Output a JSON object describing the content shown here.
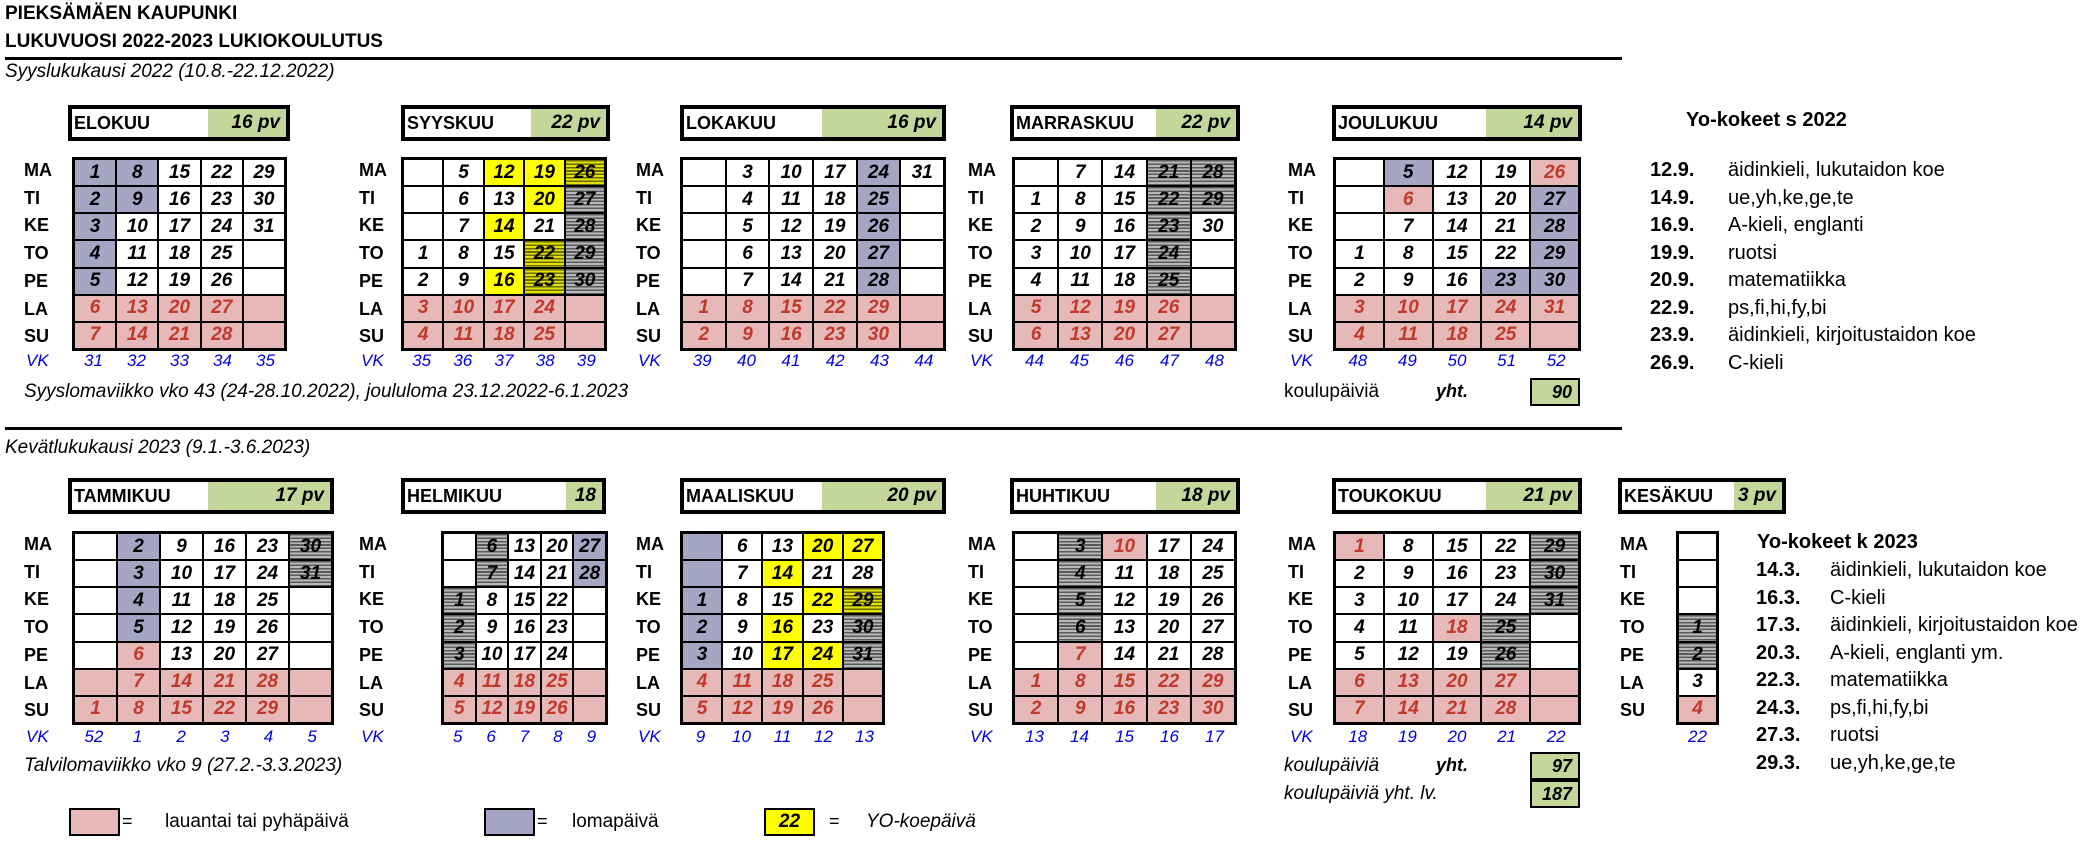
{
  "header": {
    "city": "PIEKSÄMÄEN KAUPUNKI",
    "year": "LUKUVUOSI 2022-2023 LUKIOKOULUTUS",
    "term1": "Syyslukukausi 2022 (10.8.-22.12.2022)",
    "term2": "Kevätlukukausi 2023  (9.1.-3.6.2023)"
  },
  "day_labels": [
    "MA",
    "TI",
    "KE",
    "TO",
    "PE",
    "LA",
    "SU"
  ],
  "vk_label": "VK",
  "months": [
    {
      "name": "ELOKUU",
      "pv": "16  pv",
      "cols": 5,
      "rows": [
        [
          "1",
          "8",
          "15",
          "22",
          "29"
        ],
        [
          "2",
          "9",
          "16",
          "23",
          "30"
        ],
        [
          "3",
          "10",
          "17",
          "24",
          "31"
        ],
        [
          "4",
          "11",
          "18",
          "25",
          ""
        ],
        [
          "5",
          "12",
          "19",
          "26",
          ""
        ],
        [
          "6",
          "13",
          "20",
          "27",
          ""
        ],
        [
          "7",
          "14",
          "21",
          "28",
          ""
        ]
      ],
      "styles": [
        [
          "l",
          "l",
          "v",
          "v",
          "v"
        ],
        [
          "l",
          "l",
          "v",
          "v",
          "v"
        ],
        [
          "l",
          "v",
          "v",
          "v",
          "v"
        ],
        [
          "l",
          "v",
          "v",
          "v",
          "x"
        ],
        [
          "l",
          "v",
          "v",
          "v",
          "x"
        ],
        [
          "h",
          "h",
          "h",
          "h",
          "h"
        ],
        [
          "h",
          "h",
          "h",
          "h",
          "h"
        ]
      ],
      "vk": [
        "31",
        "32",
        "33",
        "34",
        "35"
      ]
    },
    {
      "name": "SYYSKUU",
      "pv": "22  pv",
      "cols": 5,
      "rows": [
        [
          "",
          "5",
          "12",
          "19",
          "26"
        ],
        [
          "",
          "6",
          "13",
          "20",
          "27"
        ],
        [
          "",
          "7",
          "14",
          "21",
          "28"
        ],
        [
          "1",
          "8",
          "15",
          "22",
          "29"
        ],
        [
          "2",
          "9",
          "16",
          "23",
          "30"
        ],
        [
          "3",
          "10",
          "17",
          "24",
          ""
        ],
        [
          "4",
          "11",
          "18",
          "25",
          ""
        ]
      ],
      "styles": [
        [
          "x",
          "v",
          "y",
          "y",
          "ys"
        ],
        [
          "x",
          "v",
          "v",
          "y",
          "s"
        ],
        [
          "x",
          "v",
          "y",
          "v",
          "s"
        ],
        [
          "v",
          "v",
          "v",
          "ys",
          "s"
        ],
        [
          "v",
          "v",
          "y",
          "ys",
          "s"
        ],
        [
          "h",
          "h",
          "h",
          "h",
          "h"
        ],
        [
          "h",
          "h",
          "h",
          "h",
          "h"
        ]
      ],
      "vk": [
        "35",
        "36",
        "37",
        "38",
        "39"
      ]
    },
    {
      "name": "LOKAKUU",
      "pv": "16  pv",
      "cols": 6,
      "rows": [
        [
          "",
          "3",
          "10",
          "17",
          "24",
          "31"
        ],
        [
          "",
          "4",
          "11",
          "18",
          "25",
          ""
        ],
        [
          "",
          "5",
          "12",
          "19",
          "26",
          ""
        ],
        [
          "",
          "6",
          "13",
          "20",
          "27",
          ""
        ],
        [
          "",
          "7",
          "14",
          "21",
          "28",
          ""
        ],
        [
          "1",
          "8",
          "15",
          "22",
          "29",
          ""
        ],
        [
          "2",
          "9",
          "16",
          "23",
          "30",
          ""
        ]
      ],
      "styles": [
        [
          "x",
          "v",
          "v",
          "v",
          "l",
          "v"
        ],
        [
          "x",
          "v",
          "v",
          "v",
          "l",
          "x"
        ],
        [
          "x",
          "v",
          "v",
          "v",
          "l",
          "x"
        ],
        [
          "x",
          "v",
          "v",
          "v",
          "l",
          "x"
        ],
        [
          "x",
          "v",
          "v",
          "v",
          "l",
          "x"
        ],
        [
          "h",
          "h",
          "h",
          "h",
          "h",
          "h"
        ],
        [
          "h",
          "h",
          "h",
          "h",
          "h",
          "h"
        ]
      ],
      "vk": [
        "39",
        "40",
        "41",
        "42",
        "43",
        "44"
      ]
    },
    {
      "name": "MARRASKUU",
      "pv": "22  pv",
      "cols": 5,
      "rows": [
        [
          "",
          "7",
          "14",
          "21",
          "28"
        ],
        [
          "1",
          "8",
          "15",
          "22",
          "29"
        ],
        [
          "2",
          "9",
          "16",
          "23",
          "30"
        ],
        [
          "3",
          "10",
          "17",
          "24",
          ""
        ],
        [
          "4",
          "11",
          "18",
          "25",
          ""
        ],
        [
          "5",
          "12",
          "19",
          "26",
          ""
        ],
        [
          "6",
          "13",
          "20",
          "27",
          ""
        ]
      ],
      "styles": [
        [
          "x",
          "v",
          "v",
          "s",
          "s"
        ],
        [
          "v",
          "v",
          "v",
          "s",
          "s"
        ],
        [
          "v",
          "v",
          "v",
          "s",
          "v"
        ],
        [
          "v",
          "v",
          "v",
          "s",
          "x"
        ],
        [
          "v",
          "v",
          "v",
          "s",
          "x"
        ],
        [
          "h",
          "h",
          "h",
          "h",
          "h"
        ],
        [
          "h",
          "h",
          "h",
          "h",
          "h"
        ]
      ],
      "vk": [
        "44",
        "45",
        "46",
        "47",
        "48"
      ]
    },
    {
      "name": "JOULUKUU",
      "pv": "14  pv",
      "cols": 5,
      "rows": [
        [
          "",
          "5",
          "12",
          "19",
          "26"
        ],
        [
          "",
          "6",
          "13",
          "20",
          "27"
        ],
        [
          "",
          "7",
          "14",
          "21",
          "28"
        ],
        [
          "1",
          "8",
          "15",
          "22",
          "29"
        ],
        [
          "2",
          "9",
          "16",
          "23",
          "30"
        ],
        [
          "3",
          "10",
          "17",
          "24",
          "31"
        ],
        [
          "4",
          "11",
          "18",
          "25",
          ""
        ]
      ],
      "styles": [
        [
          "x",
          "l",
          "v",
          "v",
          "h"
        ],
        [
          "x",
          "h",
          "v",
          "v",
          "l"
        ],
        [
          "x",
          "v",
          "v",
          "v",
          "l"
        ],
        [
          "v",
          "v",
          "v",
          "v",
          "l"
        ],
        [
          "v",
          "v",
          "v",
          "l",
          "l"
        ],
        [
          "h",
          "h",
          "h",
          "h",
          "h"
        ],
        [
          "h",
          "h",
          "h",
          "h",
          "h"
        ]
      ],
      "vk": [
        "48",
        "49",
        "50",
        "51",
        "52"
      ]
    },
    {
      "name": "TAMMIKUU",
      "pv": "17  pv",
      "cols": 6,
      "rows": [
        [
          "",
          "2",
          "9",
          "16",
          "23",
          "30"
        ],
        [
          "",
          "3",
          "10",
          "17",
          "24",
          "31"
        ],
        [
          "",
          "4",
          "11",
          "18",
          "25",
          ""
        ],
        [
          "",
          "5",
          "12",
          "19",
          "26",
          ""
        ],
        [
          "",
          "6",
          "13",
          "20",
          "27",
          ""
        ],
        [
          "",
          "7",
          "14",
          "21",
          "28",
          ""
        ],
        [
          "1",
          "8",
          "15",
          "22",
          "29",
          ""
        ]
      ],
      "styles": [
        [
          "x",
          "l",
          "v",
          "v",
          "v",
          "s"
        ],
        [
          "x",
          "l",
          "v",
          "v",
          "v",
          "s"
        ],
        [
          "x",
          "l",
          "v",
          "v",
          "v",
          "x"
        ],
        [
          "x",
          "l",
          "v",
          "v",
          "v",
          "x"
        ],
        [
          "x",
          "h",
          "v",
          "v",
          "v",
          "x"
        ],
        [
          "h",
          "h",
          "h",
          "h",
          "h",
          "h"
        ],
        [
          "h",
          "h",
          "h",
          "h",
          "h",
          "h"
        ]
      ],
      "vk": [
        "52",
        "1",
        "2",
        "3",
        "4",
        "5"
      ]
    },
    {
      "name": "HELMIKUU",
      "pv": "18",
      "cols": 5,
      "rows": [
        [
          "",
          "6",
          "13",
          "20",
          "27"
        ],
        [
          "",
          "7",
          "14",
          "21",
          "28"
        ],
        [
          "1",
          "8",
          "15",
          "22",
          ""
        ],
        [
          "2",
          "9",
          "16",
          "23",
          ""
        ],
        [
          "3",
          "10",
          "17",
          "24",
          ""
        ],
        [
          "4",
          "11",
          "18",
          "25",
          ""
        ],
        [
          "5",
          "12",
          "19",
          "26",
          ""
        ]
      ],
      "styles": [
        [
          "x",
          "s",
          "v",
          "v",
          "l"
        ],
        [
          "x",
          "s",
          "v",
          "v",
          "l"
        ],
        [
          "s",
          "v",
          "v",
          "v",
          "x"
        ],
        [
          "s",
          "v",
          "v",
          "v",
          "x"
        ],
        [
          "s",
          "v",
          "v",
          "v",
          "x"
        ],
        [
          "h",
          "h",
          "h",
          "h",
          "h"
        ],
        [
          "h",
          "h",
          "h",
          "h",
          "h"
        ]
      ],
      "vk": [
        "5",
        "6",
        "7",
        "8",
        "9"
      ]
    },
    {
      "name": "MAALISKUU",
      "pv": "20  pv",
      "cols": 5,
      "rows": [
        [
          "",
          "6",
          "13",
          "20",
          "27"
        ],
        [
          "",
          "7",
          "14",
          "21",
          "28"
        ],
        [
          "1",
          "8",
          "15",
          "22",
          "29"
        ],
        [
          "2",
          "9",
          "16",
          "23",
          "30"
        ],
        [
          "3",
          "10",
          "17",
          "24",
          "31"
        ],
        [
          "4",
          "11",
          "18",
          "25",
          ""
        ],
        [
          "5",
          "12",
          "19",
          "26",
          ""
        ]
      ],
      "styles": [
        [
          "l",
          "v",
          "v",
          "y",
          "y"
        ],
        [
          "l",
          "v",
          "y",
          "v",
          "v"
        ],
        [
          "l",
          "v",
          "v",
          "y",
          "ys"
        ],
        [
          "l",
          "v",
          "y",
          "v",
          "s"
        ],
        [
          "l",
          "v",
          "y",
          "y",
          "s"
        ],
        [
          "h",
          "h",
          "h",
          "h",
          "h"
        ],
        [
          "h",
          "h",
          "h",
          "h",
          "h"
        ]
      ],
      "vk": [
        "9",
        "10",
        "11",
        "12",
        "13"
      ]
    },
    {
      "name": "HUHTIKUU",
      "pv": "18  pv",
      "cols": 5,
      "rows": [
        [
          "",
          "3",
          "10",
          "17",
          "24"
        ],
        [
          "",
          "4",
          "11",
          "18",
          "25"
        ],
        [
          "",
          "5",
          "12",
          "19",
          "26"
        ],
        [
          "",
          "6",
          "13",
          "20",
          "27"
        ],
        [
          "",
          "7",
          "14",
          "21",
          "28"
        ],
        [
          "1",
          "8",
          "15",
          "22",
          "29"
        ],
        [
          "2",
          "9",
          "16",
          "23",
          "30"
        ]
      ],
      "styles": [
        [
          "x",
          "s",
          "h",
          "v",
          "v"
        ],
        [
          "x",
          "s",
          "v",
          "v",
          "v"
        ],
        [
          "x",
          "s",
          "v",
          "v",
          "v"
        ],
        [
          "x",
          "s",
          "v",
          "v",
          "v"
        ],
        [
          "x",
          "h",
          "v",
          "v",
          "v"
        ],
        [
          "h",
          "h",
          "h",
          "h",
          "h"
        ],
        [
          "h",
          "h",
          "h",
          "h",
          "h"
        ]
      ],
      "vk": [
        "13",
        "14",
        "15",
        "16",
        "17"
      ]
    },
    {
      "name": "TOUKOKUU",
      "pv": "21  pv",
      "cols": 5,
      "rows": [
        [
          "1",
          "8",
          "15",
          "22",
          "29"
        ],
        [
          "2",
          "9",
          "16",
          "23",
          "30"
        ],
        [
          "3",
          "10",
          "17",
          "24",
          "31"
        ],
        [
          "4",
          "11",
          "18",
          "25",
          ""
        ],
        [
          "5",
          "12",
          "19",
          "26",
          ""
        ],
        [
          "6",
          "13",
          "20",
          "27",
          ""
        ],
        [
          "7",
          "14",
          "21",
          "28",
          ""
        ]
      ],
      "styles": [
        [
          "h",
          "v",
          "v",
          "v",
          "s"
        ],
        [
          "v",
          "v",
          "v",
          "v",
          "s"
        ],
        [
          "v",
          "v",
          "v",
          "v",
          "s"
        ],
        [
          "v",
          "v",
          "h",
          "s",
          "x"
        ],
        [
          "v",
          "v",
          "v",
          "s",
          "x"
        ],
        [
          "h",
          "h",
          "h",
          "h",
          "h"
        ],
        [
          "h",
          "h",
          "h",
          "h",
          "h"
        ]
      ],
      "vk": [
        "18",
        "19",
        "20",
        "21",
        "22"
      ]
    },
    {
      "name": "KESÄKUU",
      "pv": "3  pv",
      "cols": 1,
      "rows": [
        [
          ""
        ],
        [
          ""
        ],
        [
          ""
        ],
        [
          "1"
        ],
        [
          "2"
        ],
        [
          "3"
        ],
        [
          "4"
        ]
      ],
      "styles": [
        [
          "x"
        ],
        [
          "x"
        ],
        [
          "x"
        ],
        [
          "s"
        ],
        [
          "s"
        ],
        [
          "v"
        ],
        [
          "h"
        ]
      ],
      "vk": [
        "22"
      ]
    }
  ],
  "notes": {
    "autumn": "Syyslomaviikko vko 43 (24-28.10.2022), joululoma 23.12.2022-6.1.2023",
    "spring": "Talvilomaviikko vko 9 (27.2.-3.3.2023)",
    "schooldays_label": "koulupäiviä",
    "total_label": "yht.",
    "autumn_total": "90",
    "spring_total": "97",
    "year_label": "koulupäiviä yht. lv.",
    "year_total": "187"
  },
  "yo_autumn": {
    "title": "Yo-kokeet s 2022",
    "items": [
      {
        "date": "12.9.",
        "subject": "äidinkieli, lukutaidon koe"
      },
      {
        "date": "14.9.",
        "subject": "ue,yh,ke,ge,te"
      },
      {
        "date": "16.9.",
        "subject": "A-kieli, englanti"
      },
      {
        "date": "19.9.",
        "subject": "ruotsi"
      },
      {
        "date": "20.9.",
        "subject": "matematiikka"
      },
      {
        "date": "22.9.",
        "subject": "ps,fi,hi,fy,bi"
      },
      {
        "date": "23.9.",
        "subject": "äidinkieli, kirjoitustaidon koe"
      },
      {
        "date": "26.9.",
        "subject": "C-kieli"
      }
    ]
  },
  "yo_spring": {
    "title": "Yo-kokeet k 2023",
    "items": [
      {
        "date": "14.3.",
        "subject": "äidinkieli, lukutaidon koe"
      },
      {
        "date": "16.3.",
        "subject": "C-kieli"
      },
      {
        "date": "17.3.",
        "subject": "äidinkieli, kirjoitustaidon koe"
      },
      {
        "date": "20.3.",
        "subject": "A-kieli, englanti ym."
      },
      {
        "date": "22.3.",
        "subject": "matematiikka"
      },
      {
        "date": "24.3.",
        "subject": "ps,fi,hi,fy,bi"
      },
      {
        "date": "27.3.",
        "subject": "ruotsi"
      },
      {
        "date": "29.3.",
        "subject": "ue,yh,ke,ge,te"
      }
    ]
  },
  "legend": {
    "eq": "=",
    "holiday": "lauantai tai pyhäpäivä",
    "vacation": "lomapäivä",
    "yo_sample": "22",
    "yo": "YO-koepäivä"
  },
  "colors": {
    "holiday": "#e6b8b7",
    "vacation": "#a6a6c4",
    "yo": "#ffff00",
    "pv": "#c4d79b",
    "week": "#0000dd"
  }
}
